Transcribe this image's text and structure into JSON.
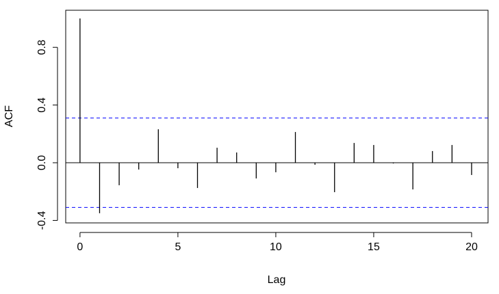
{
  "chart_data": {
    "type": "stem",
    "x_label": "Lag",
    "y_label": "ACF",
    "x": [
      0,
      1,
      2,
      3,
      4,
      5,
      6,
      7,
      8,
      9,
      10,
      11,
      12,
      13,
      14,
      15,
      16,
      17,
      18,
      19,
      20
    ],
    "values": [
      1.0,
      -0.35,
      -0.156,
      -0.047,
      0.232,
      -0.038,
      -0.175,
      0.104,
      0.071,
      -0.109,
      -0.066,
      0.213,
      -0.014,
      -0.204,
      0.137,
      0.123,
      -0.005,
      -0.185,
      0.081,
      0.123,
      -0.085
    ],
    "color": "#000000",
    "confidence_bounds": [
      -0.31,
      0.31
    ],
    "bound_color": "#0000ff",
    "xlim": [
      -0.73,
      20.84
    ],
    "ylim": [
      -0.417,
      1.057
    ],
    "xticks": [
      0,
      5,
      10,
      15,
      20
    ],
    "yticks": [
      -0.4,
      {
        "value": 0.0,
        "label": "0.0"
      },
      0.4,
      0.8
    ]
  }
}
